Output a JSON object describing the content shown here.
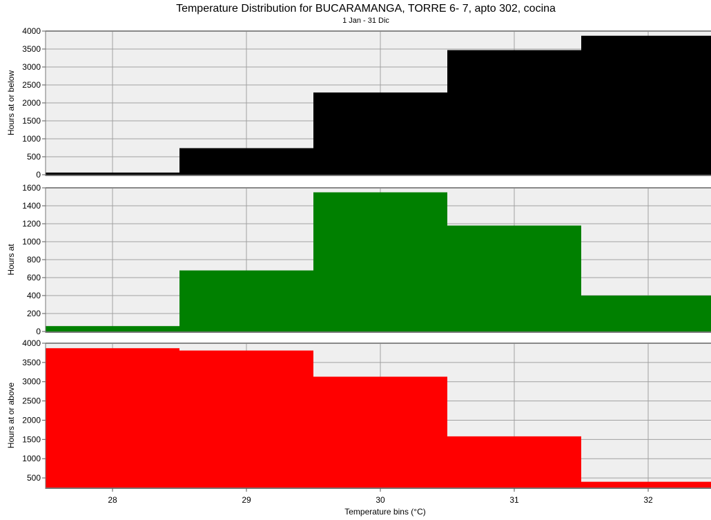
{
  "chart_data": {
    "type": "bar",
    "title": "Temperature Distribution for BUCARAMANGA, TORRE 6- 7, apto 302, cocina",
    "subtitle": "1 Jan - 31 Dic",
    "xlabel": "Temperature bins (°C)",
    "categories": [
      "28",
      "29",
      "30",
      "31",
      "32"
    ],
    "xticks": [
      "28",
      "29",
      "30",
      "31",
      "32"
    ],
    "grid": true,
    "panels": [
      {
        "name": "at-or-below",
        "ylabel": "Hours at or below",
        "color": "#000000",
        "ylim": [
          0,
          4000
        ],
        "yticks": [
          0,
          500,
          1000,
          1500,
          2000,
          2500,
          3000,
          3500,
          4000
        ],
        "values": [
          60,
          740,
          2290,
          3470,
          3870
        ]
      },
      {
        "name": "at",
        "ylabel": "Hours at",
        "color": "#008000",
        "ylim": [
          0,
          1600
        ],
        "yticks": [
          0,
          200,
          400,
          600,
          800,
          1000,
          1200,
          1400,
          1600
        ],
        "values": [
          60,
          680,
          1550,
          1180,
          400
        ]
      },
      {
        "name": "at-or-above",
        "ylabel": "Hours at or above",
        "color": "#ff0000",
        "ylim": [
          250,
          4000
        ],
        "yticks": [
          500,
          1000,
          1500,
          2000,
          2500,
          3000,
          3500,
          4000
        ],
        "values": [
          3870,
          3810,
          3130,
          1580,
          400
        ]
      }
    ]
  }
}
